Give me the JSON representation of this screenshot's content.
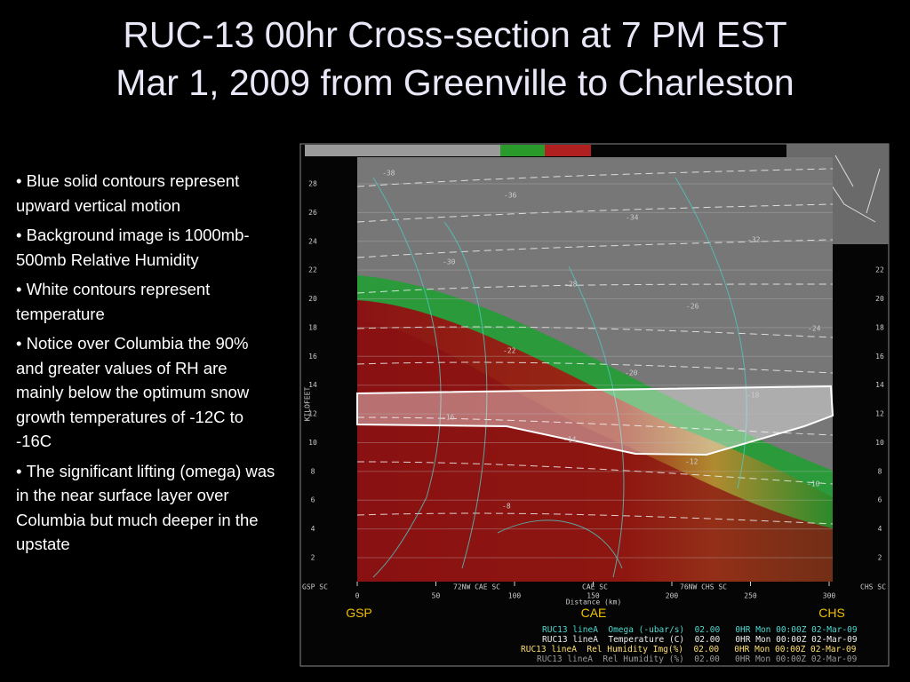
{
  "title": {
    "line1": "RUC-13 00hr Cross-section at 7 PM EST",
    "line2": "Mar 1, 2009 from Greenville to Charleston"
  },
  "bullets": [
    "Blue solid contours represent upward vertical motion",
    "Background image is 1000mb-500mb Relative Humidity",
    "White contours represent temperature",
    "Notice over Columbia the 90% and greater values of RH are mainly below the optimum snow growth temperatures of -12C to -16C",
    "The significant lifting (omega) was in the near surface layer over Columbia but much deeper in the upstate"
  ],
  "cross_section": {
    "y_ticks": [
      2,
      4,
      6,
      8,
      10,
      12,
      14,
      16,
      18,
      20,
      22,
      24,
      26,
      28
    ],
    "x_ticks": [
      0,
      50,
      100,
      150,
      200,
      250,
      300
    ],
    "y_axis_label": "KILOFEET",
    "x_axis_label": "Distance (km)",
    "bottom_labels": [
      "GSP SC",
      "72NW CAE SC",
      "CAE SC",
      "76NW CHS SC",
      "CHS SC"
    ],
    "stations": [
      "GSP",
      "CAE",
      "CHS"
    ],
    "legend": [
      "RUC13 lineA  Omega (-ubar/s)  02.00   0HR Mon 00:00Z 02-Mar-09",
      "RUC13 lineA  Temperature (C)  02.00   0HR Mon 00:00Z 02-Mar-09",
      "RUC13 lineA  Rel Humidity Img(%)  02.00   0HR Mon 00:00Z 02-Mar-09",
      "RUC13 lineA  Rel Humidity (%)  02.00   0HR Mon 00:00Z 02-Mar-09"
    ],
    "contour_labels": [
      "-38",
      "-36",
      "-34",
      "-32",
      "-30",
      "-28",
      "-26",
      "-24",
      "-22",
      "-20",
      "-18",
      "-16",
      "-14",
      "-12",
      "-10",
      "-8"
    ]
  }
}
